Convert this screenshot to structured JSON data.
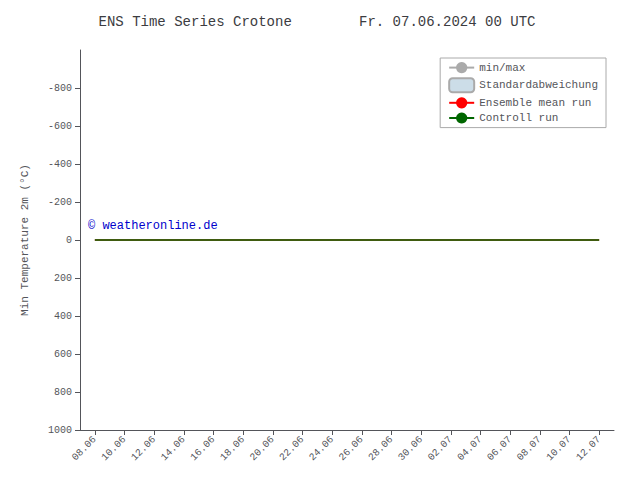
{
  "chart_data": {
    "type": "line",
    "title": "ENS Time Series Crotone        Fr. 07.06.2024 00 UTC",
    "ylabel": "Min Temperature 2m (°C)",
    "categories": [
      "08.06",
      "10.06",
      "12.06",
      "14.06",
      "16.06",
      "18.06",
      "20.06",
      "22.06",
      "24.06",
      "26.06",
      "28.06",
      "30.06",
      "02.07",
      "04.07",
      "06.07",
      "08.07",
      "10.07",
      "12.07"
    ],
    "series": [
      {
        "name": "min/max",
        "type": "line",
        "color": "#aaaaaa",
        "values": [
          null,
          null,
          null,
          null,
          null,
          null,
          null,
          null,
          null,
          null,
          null,
          null,
          null,
          null,
          null,
          null,
          null,
          null
        ]
      },
      {
        "name": "Standardabweichung",
        "type": "bar",
        "color": "#ccdde8",
        "values": [
          null,
          null,
          null,
          null,
          null,
          null,
          null,
          null,
          null,
          null,
          null,
          null,
          null,
          null,
          null,
          null,
          null,
          null
        ]
      },
      {
        "name": "Ensemble mean run",
        "type": "line",
        "color": "#ff0000",
        "values": [
          0,
          0,
          0,
          0,
          0,
          0,
          0,
          0,
          0,
          0,
          0,
          0,
          0,
          0,
          0,
          0,
          0,
          0
        ]
      },
      {
        "name": "Controll run",
        "type": "line",
        "color": "#006600",
        "values": [
          0,
          0,
          0,
          0,
          0,
          0,
          0,
          0,
          0,
          0,
          0,
          0,
          0,
          0,
          0,
          0,
          0,
          0
        ]
      }
    ],
    "ylim": [
      -1000,
      1000
    ],
    "yticks": [
      -800,
      -600,
      -400,
      -200,
      0,
      200,
      400,
      600,
      800,
      1000
    ],
    "annotations": [
      {
        "text": "© weatheronline.de",
        "color": "#0000cc"
      }
    ],
    "grid": false,
    "legend": "upper right"
  }
}
